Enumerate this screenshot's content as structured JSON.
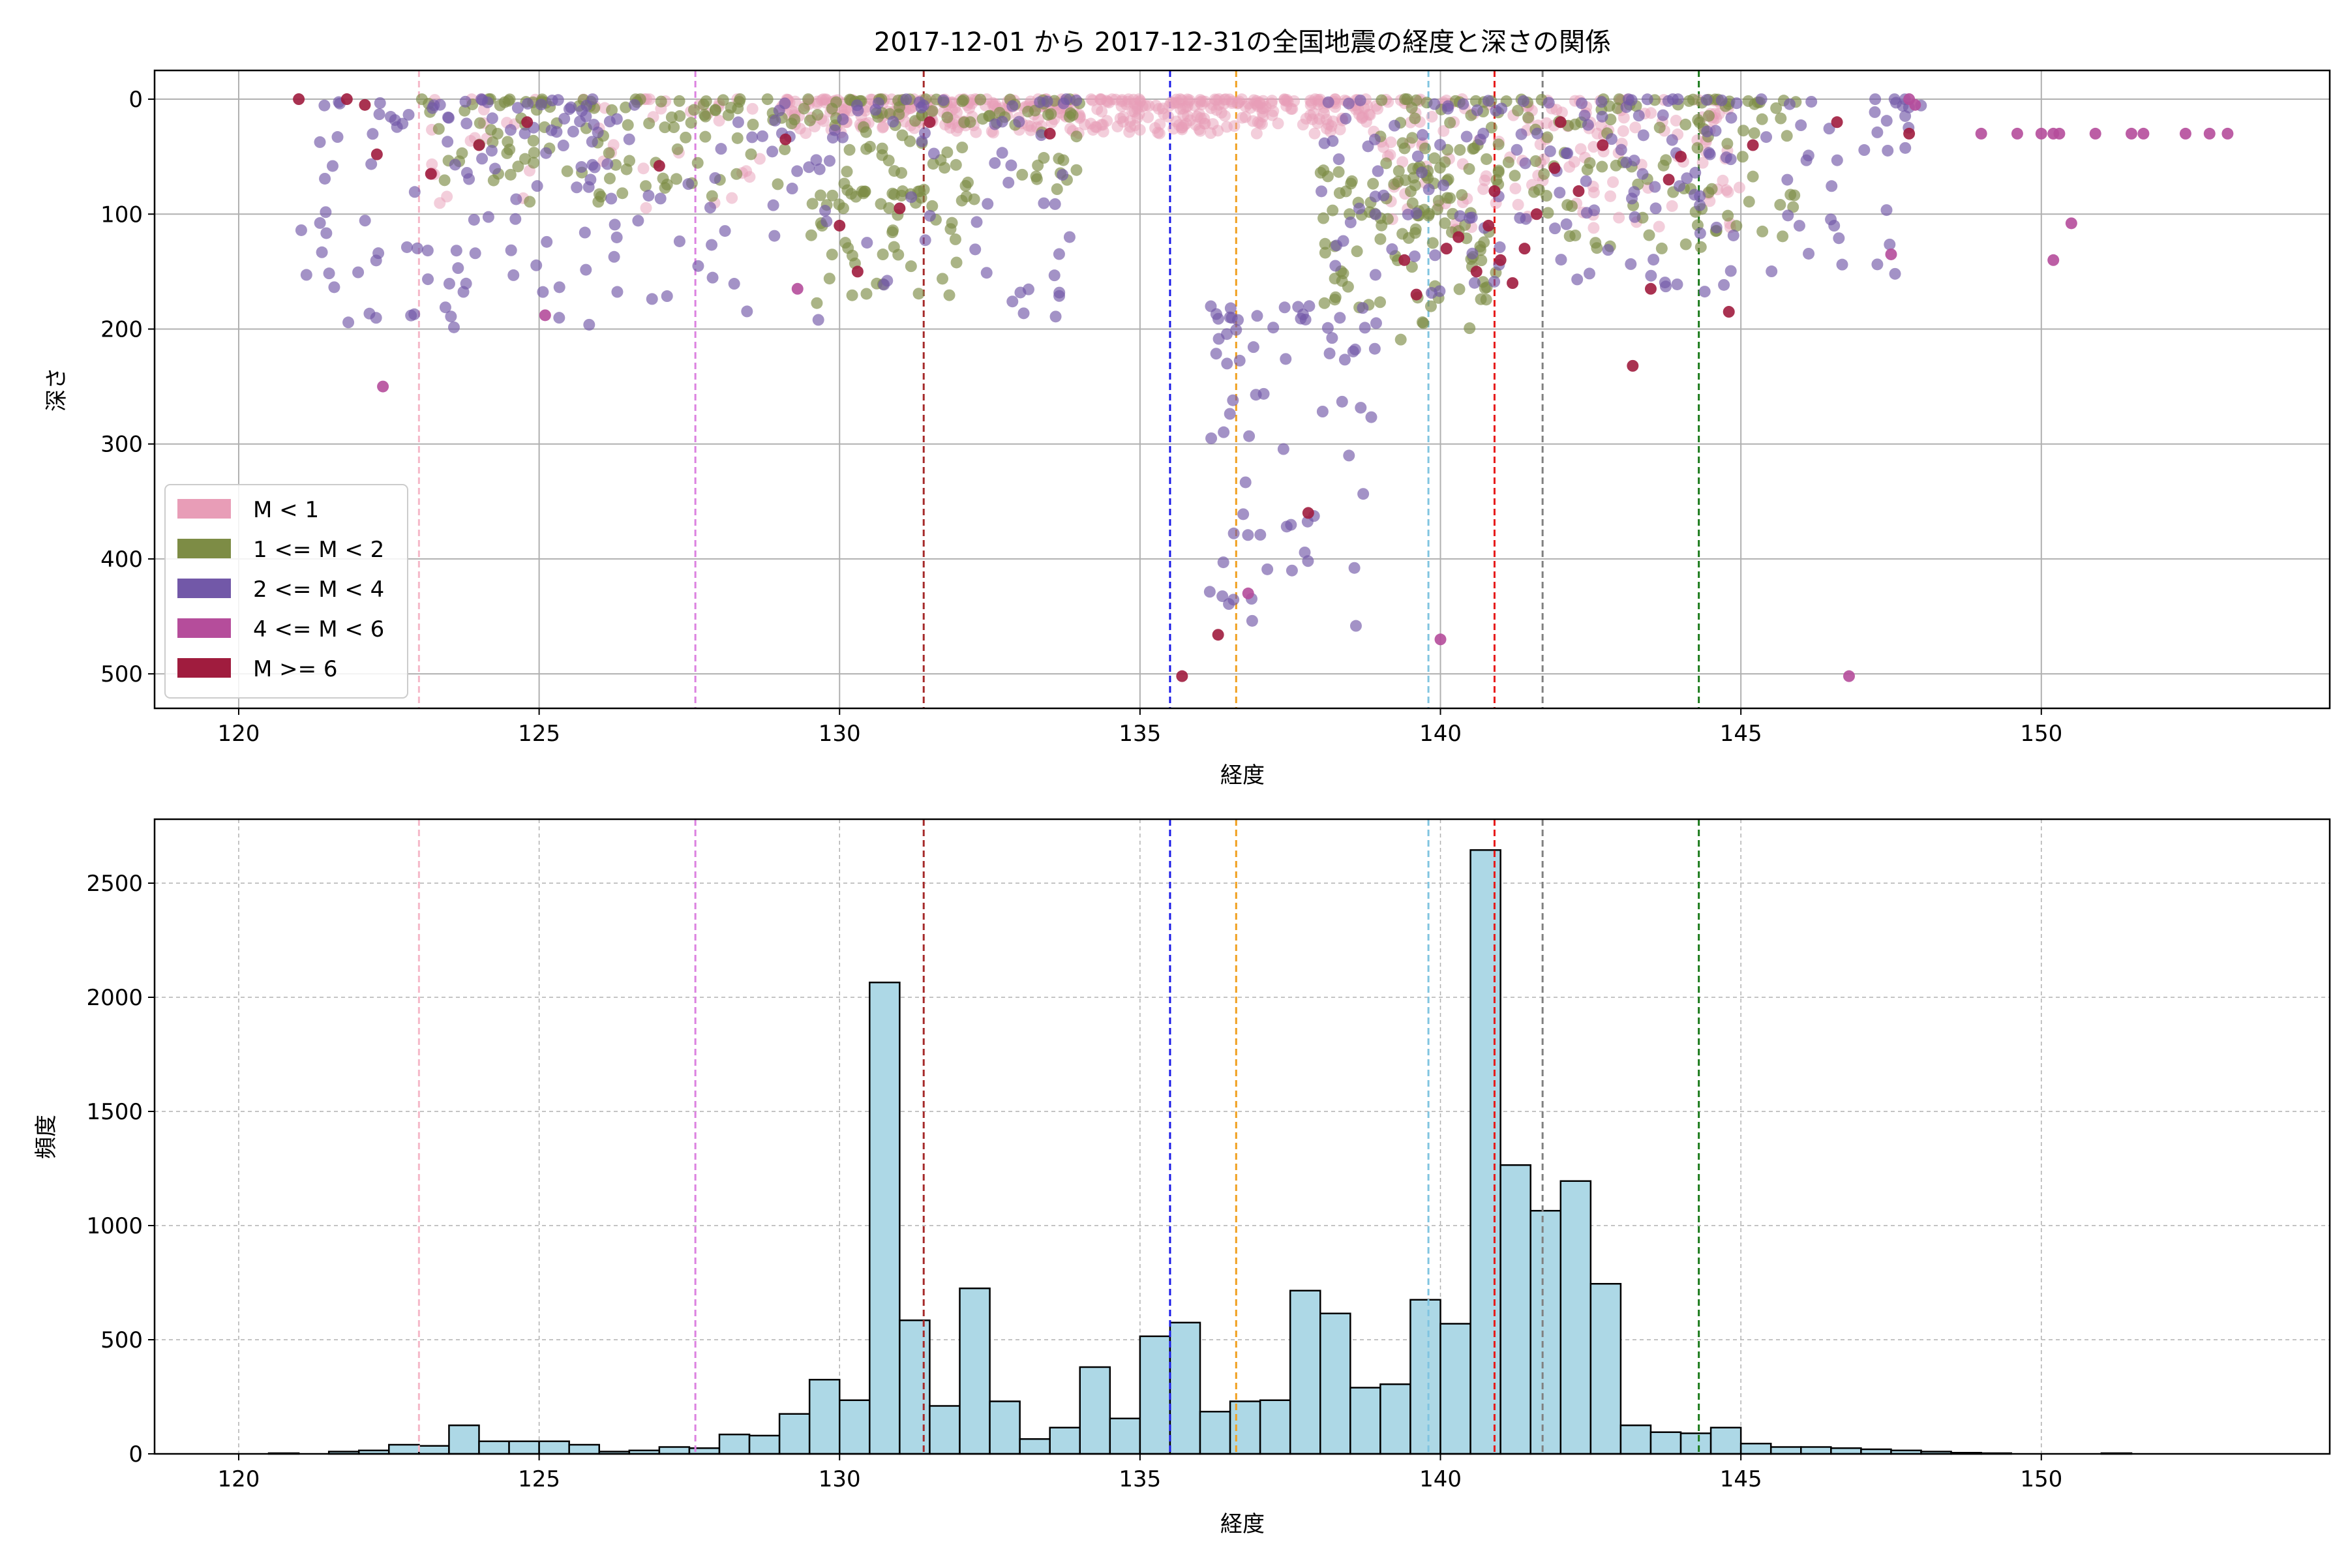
{
  "chart_data": [
    {
      "type": "scatter",
      "title": "2017-12-01 から 2017-12-31の全国地震の経度と深さの関係",
      "xlabel": "経度",
      "ylabel": "深さ",
      "xlim": [
        118.6,
        154.8
      ],
      "ylim": [
        530,
        -25
      ],
      "y_inverted": true,
      "xticks": [
        120,
        125,
        130,
        135,
        140,
        145,
        150
      ],
      "yticks": [
        0,
        100,
        200,
        300,
        400,
        500
      ],
      "grid": true,
      "legend_position": "lower-left",
      "legend": [
        {
          "label": "M < 1",
          "color": "#e89db7"
        },
        {
          "label": "1 <= M < 2",
          "color": "#7d8c45"
        },
        {
          "label": "2 <= M < 4",
          "color": "#7258a8"
        },
        {
          "label": "4 <= M < 6",
          "color": "#b54d9b"
        },
        {
          "label": "M >= 6",
          "color": "#a01c3e"
        }
      ],
      "reference_lines": [
        {
          "x": 123.0,
          "color": "#f5b8c8"
        },
        {
          "x": 127.6,
          "color": "#dc82e0"
        },
        {
          "x": 131.4,
          "color": "#a52a2a"
        },
        {
          "x": 135.5,
          "color": "#1a1ae6"
        },
        {
          "x": 136.6,
          "color": "#f0a020"
        },
        {
          "x": 139.8,
          "color": "#80c4e0"
        },
        {
          "x": 140.9,
          "color": "#e61a1a"
        },
        {
          "x": 141.7,
          "color": "#808080"
        },
        {
          "x": 144.3,
          "color": "#1a7a1a"
        }
      ],
      "series": [
        {
          "name": "M < 1",
          "clusters": [
            {
              "lon": [
                129,
                139
              ],
              "depth": [
                0,
                30
              ],
              "n": 420
            },
            {
              "lon": [
                139,
                145
              ],
              "depth": [
                0,
                120
              ],
              "n": 160
            },
            {
              "lon": [
                123,
                129
              ],
              "depth": [
                0,
                100
              ],
              "n": 50
            }
          ]
        },
        {
          "name": "1 <= M < 2",
          "clusters": [
            {
              "lon": [
                123,
                134
              ],
              "depth": [
                0,
                90
              ],
              "n": 220
            },
            {
              "lon": [
                129.5,
                132
              ],
              "depth": [
                80,
                180
              ],
              "n": 50
            },
            {
              "lon": [
                138,
                141
              ],
              "depth": [
                60,
                210
              ],
              "n": 90
            },
            {
              "lon": [
                139,
                146
              ],
              "depth": [
                0,
                130
              ],
              "n": 160
            }
          ]
        },
        {
          "name": "2 <= M < 4",
          "clusters": [
            {
              "lon": [
                121,
                126
              ],
              "depth": [
                0,
                200
              ],
              "n": 110
            },
            {
              "lon": [
                126,
                134
              ],
              "depth": [
                0,
                200
              ],
              "n": 100
            },
            {
              "lon": [
                138,
                148
              ],
              "depth": [
                0,
                170
              ],
              "n": 170
            },
            {
              "lon": [
                136,
                139
              ],
              "depth": [
                180,
                460
              ],
              "n": 70
            }
          ]
        },
        {
          "name": "4 <= M < 6",
          "points": [
            [
              122.4,
              250
            ],
            [
              125.1,
              188
            ],
            [
              129.3,
              165
            ],
            [
              136.8,
              430
            ],
            [
              140.0,
              470
            ],
            [
              146.8,
              502
            ],
            [
              147.5,
              135
            ],
            [
              150.2,
              140
            ],
            [
              150.5,
              108
            ],
            [
              149.0,
              30
            ],
            [
              150.0,
              30
            ],
            [
              150.2,
              30
            ],
            [
              150.3,
              30
            ],
            [
              150.9,
              30
            ],
            [
              151.5,
              30
            ],
            [
              151.7,
              30
            ],
            [
              152.4,
              30
            ],
            [
              152.8,
              30
            ],
            [
              153.1,
              30
            ],
            [
              149.6,
              30
            ],
            [
              147.8,
              0
            ],
            [
              147.9,
              5
            ]
          ]
        },
        {
          "name": "M >= 6",
          "points": [
            [
              121.0,
              0
            ],
            [
              121.8,
              0
            ],
            [
              122.1,
              5
            ],
            [
              122.3,
              48
            ],
            [
              123.2,
              65
            ],
            [
              124.0,
              40
            ],
            [
              124.8,
              20
            ],
            [
              127.0,
              58
            ],
            [
              129.1,
              35
            ],
            [
              130.0,
              110
            ],
            [
              130.3,
              150
            ],
            [
              131.0,
              95
            ],
            [
              131.5,
              20
            ],
            [
              133.5,
              30
            ],
            [
              136.3,
              466
            ],
            [
              135.7,
              502
            ],
            [
              137.8,
              360
            ],
            [
              139.4,
              140
            ],
            [
              139.6,
              170
            ],
            [
              140.1,
              130
            ],
            [
              140.3,
              120
            ],
            [
              140.6,
              150
            ],
            [
              140.8,
              110
            ],
            [
              141.0,
              140
            ],
            [
              141.2,
              160
            ],
            [
              141.4,
              130
            ],
            [
              141.6,
              100
            ],
            [
              141.9,
              60
            ],
            [
              142.3,
              80
            ],
            [
              142.7,
              40
            ],
            [
              143.2,
              232
            ],
            [
              143.5,
              165
            ],
            [
              144.0,
              50
            ],
            [
              144.8,
              185
            ],
            [
              145.2,
              40
            ],
            [
              147.8,
              30
            ],
            [
              146.6,
              20
            ],
            [
              140.9,
              80
            ],
            [
              142.0,
              20
            ],
            [
              143.8,
              70
            ]
          ]
        }
      ]
    },
    {
      "type": "histogram",
      "xlabel": "経度",
      "ylabel": "頻度",
      "xlim": [
        118.6,
        154.8
      ],
      "ylim": [
        0,
        2780
      ],
      "xticks": [
        120,
        125,
        130,
        135,
        140,
        145,
        150
      ],
      "yticks": [
        0,
        500,
        1000,
        1500,
        2000,
        2500
      ],
      "grid": true,
      "bar_color": "#add8e6",
      "edge_color": "#000000",
      "bin_start": 120.5,
      "bin_width": 0.5,
      "counts": [
        3,
        0,
        10,
        15,
        40,
        35,
        125,
        55,
        55,
        55,
        40,
        10,
        15,
        30,
        25,
        85,
        80,
        175,
        325,
        235,
        2065,
        585,
        210,
        725,
        230,
        65,
        115,
        380,
        155,
        515,
        575,
        185,
        230,
        235,
        715,
        615,
        290,
        305,
        675,
        570,
        2645,
        1265,
        1065,
        1195,
        745,
        125,
        95,
        90,
        115,
        45,
        30,
        30,
        25,
        20,
        15,
        10,
        5,
        3,
        0,
        0,
        0,
        3,
        0,
        0,
        0,
        0
      ],
      "reference_lines": [
        {
          "x": 123.0,
          "color": "#f5b8c8"
        },
        {
          "x": 127.6,
          "color": "#dc82e0"
        },
        {
          "x": 131.4,
          "color": "#a52a2a"
        },
        {
          "x": 135.5,
          "color": "#1a1ae6"
        },
        {
          "x": 136.6,
          "color": "#f0a020"
        },
        {
          "x": 139.8,
          "color": "#80c4e0"
        },
        {
          "x": 140.9,
          "color": "#e61a1a"
        },
        {
          "x": 141.7,
          "color": "#808080"
        },
        {
          "x": 144.3,
          "color": "#1a7a1a"
        }
      ]
    }
  ]
}
